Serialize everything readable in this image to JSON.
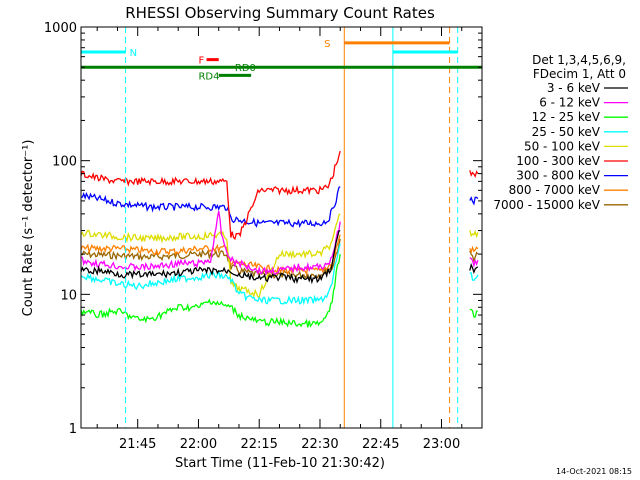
{
  "chart_data": {
    "type": "line",
    "title": "RHESSI Observing Summary Count Rates",
    "xlabel": "Start Time (11-Feb-10 21:30:42)",
    "ylabel": "Count Rate (s⁻¹ detector⁻¹)",
    "y_scale": "log",
    "ylim": [
      1,
      1000
    ],
    "xlim": [
      "21:31",
      "23:10"
    ],
    "y_ticks": [
      {
        "value": 1,
        "label": "1"
      },
      {
        "value": 10,
        "label": "10"
      },
      {
        "value": 100,
        "label": "100"
      },
      {
        "value": 1000,
        "label": "1000"
      }
    ],
    "x_ticks": [
      {
        "value": "21:45",
        "label": "21:45"
      },
      {
        "value": "22:00",
        "label": "22:00"
      },
      {
        "value": "22:15",
        "label": "22:15"
      },
      {
        "value": "22:30",
        "label": "22:30"
      },
      {
        "value": "22:45",
        "label": "22:45"
      },
      {
        "value": "23:00",
        "label": "23:00"
      }
    ],
    "legend_header": [
      "Det 1,3,4,5,6,9,",
      "FDecim 1, Att 0"
    ],
    "legend_position": "right",
    "series": [
      {
        "name": "3 - 6 keV",
        "color": "#000000",
        "segments": [
          {
            "x": [
              "21:31",
              "21:36",
              "21:42",
              "21:48",
              "21:55",
              "22:00",
              "22:05",
              "22:08",
              "22:10",
              "22:13",
              "22:15",
              "22:20",
              "22:25",
              "22:30",
              "22:33",
              "22:34",
              "22:35"
            ],
            "y": [
              15,
              15,
              14,
              14,
              14.5,
              15,
              15,
              15,
              14,
              13.5,
              13,
              13.5,
              13,
              13,
              16,
              25,
              30
            ]
          },
          {
            "x": [
              "23:07",
              "23:08",
              "23:09"
            ],
            "y": [
              16,
              15,
              16
            ]
          }
        ]
      },
      {
        "name": "6 - 12 keV",
        "color": "#ff00ff",
        "segments": [
          {
            "x": [
              "21:31",
              "21:35",
              "21:42",
              "21:48",
              "21:55",
              "22:00",
              "22:03",
              "22:04",
              "22:05",
              "22:06",
              "22:08",
              "22:10",
              "22:13",
              "22:15",
              "22:20",
              "22:25",
              "22:30",
              "22:33",
              "22:34",
              "22:35"
            ],
            "y": [
              18,
              17,
              16,
              16,
              17,
              17,
              18,
              28,
              40,
              25,
              18,
              17,
              16,
              15,
              15,
              16,
              16,
              18,
              26,
              35
            ]
          },
          {
            "x": [
              "23:07",
              "23:08",
              "23:09"
            ],
            "y": [
              18,
              17,
              18
            ]
          }
        ]
      },
      {
        "name": "12 - 25 keV",
        "color": "#00ff00",
        "segments": [
          {
            "x": [
              "21:31",
              "21:35",
              "21:40",
              "21:45",
              "21:48",
              "21:55",
              "22:00",
              "22:03",
              "22:05",
              "22:08",
              "22:10",
              "22:15",
              "22:20",
              "22:25",
              "22:30",
              "22:32",
              "22:33",
              "22:34",
              "22:35"
            ],
            "y": [
              7.5,
              7,
              7.5,
              6.5,
              6.5,
              8,
              8,
              9,
              8.5,
              8,
              7,
              6.2,
              6.2,
              6,
              6,
              7,
              9,
              14,
              20
            ]
          },
          {
            "x": [
              "23:07",
              "23:08",
              "23:09"
            ],
            "y": [
              7.5,
              7,
              7.5
            ]
          }
        ]
      },
      {
        "name": "25 - 50 keV",
        "color": "#00ffff",
        "segments": [
          {
            "x": [
              "21:31",
              "21:35",
              "21:40",
              "21:45",
              "21:48",
              "21:55",
              "22:00",
              "22:05",
              "22:08",
              "22:10",
              "22:15",
              "22:20",
              "22:25",
              "22:30",
              "22:32",
              "22:33",
              "22:34",
              "22:35"
            ],
            "y": [
              14,
              13,
              12,
              11.5,
              12,
              13,
              13.5,
              14,
              13,
              10,
              9,
              9,
              9,
              9,
              10,
              12,
              18,
              24
            ]
          },
          {
            "x": [
              "23:07",
              "23:08",
              "23:09"
            ],
            "y": [
              14,
              13,
              14
            ]
          }
        ]
      },
      {
        "name": "50 - 100 keV",
        "color": "#dddd00",
        "segments": [
          {
            "x": [
              "21:31",
              "21:40",
              "21:48",
              "21:55",
              "22:00",
              "22:05",
              "22:07",
              "22:08",
              "22:10",
              "22:15",
              "22:20",
              "22:25",
              "22:30",
              "22:33",
              "22:34",
              "22:35"
            ],
            "y": [
              29,
              27,
              26,
              27,
              27,
              28,
              27,
              12,
              11,
              10,
              20,
              20,
              20,
              24,
              32,
              40
            ]
          },
          {
            "x": [
              "23:07",
              "23:08",
              "23:09"
            ],
            "y": [
              29,
              28,
              29
            ]
          }
        ]
      },
      {
        "name": "100 - 300 keV",
        "color": "#ff0000",
        "segments": [
          {
            "x": [
              "21:31",
              "21:35",
              "21:40",
              "21:48",
              "21:55",
              "22:00",
              "22:05",
              "22:07",
              "22:08",
              "22:10",
              "22:15",
              "22:20",
              "22:25",
              "22:30",
              "22:32",
              "22:33",
              "22:34",
              "22:35"
            ],
            "y": [
              80,
              74,
              70,
              70,
              70,
              70,
              70,
              70,
              28,
              27,
              60,
              60,
              60,
              60,
              64,
              75,
              95,
              118
            ]
          },
          {
            "x": [
              "23:07",
              "23:08",
              "23:09"
            ],
            "y": [
              80,
              77,
              80
            ]
          }
        ]
      },
      {
        "name": "300 - 800 keV",
        "color": "#0000ff",
        "segments": [
          {
            "x": [
              "21:31",
              "21:35",
              "21:40",
              "21:48",
              "21:55",
              "22:00",
              "22:05",
              "22:07",
              "22:08",
              "22:10",
              "22:15",
              "22:20",
              "22:25",
              "22:30",
              "22:32",
              "22:33",
              "22:34",
              "22:35"
            ],
            "y": [
              55,
              52,
              48,
              45,
              45,
              45,
              45,
              45,
              37,
              36,
              34,
              34,
              34,
              34,
              36,
              42,
              52,
              64
            ]
          },
          {
            "x": [
              "23:07",
              "23:08",
              "23:09"
            ],
            "y": [
              52,
              50,
              52
            ]
          }
        ]
      },
      {
        "name": "800 - 7000 keV",
        "color": "#ff8000",
        "segments": [
          {
            "x": [
              "21:31",
              "21:40",
              "21:48",
              "21:55",
              "22:00",
              "22:05",
              "22:07",
              "22:08",
              "22:10",
              "22:15",
              "22:20",
              "22:25",
              "22:30",
              "22:33",
              "22:34",
              "22:35"
            ],
            "y": [
              22,
              22,
              21,
              21,
              22,
              22,
              22,
              17,
              17,
              16,
              15,
              15,
              15,
              17,
              22,
              28
            ]
          },
          {
            "x": [
              "23:07",
              "23:08",
              "23:09"
            ],
            "y": [
              22,
              21,
              22
            ]
          }
        ]
      },
      {
        "name": "7000 - 15000 keV",
        "color": "#996600",
        "segments": [
          {
            "x": [
              "21:31",
              "21:40",
              "21:48",
              "21:55",
              "22:00",
              "22:05",
              "22:07",
              "22:08",
              "22:10",
              "22:15",
              "22:20",
              "22:25",
              "22:30",
              "22:33",
              "22:34",
              "22:35"
            ],
            "y": [
              20,
              19.5,
              19,
              19.5,
              20,
              20,
              20,
              16,
              15,
              14,
              14,
              14,
              14,
              16,
              20,
              26
            ]
          },
          {
            "x": [
              "23:07",
              "23:08",
              "23:09"
            ],
            "y": [
              20,
              19,
              20
            ]
          }
        ]
      }
    ],
    "bars": [
      {
        "label": "N",
        "color": "#00ffff",
        "y": 650,
        "segments": [
          [
            "21:31",
            "21:42"
          ],
          [
            "22:48",
            "23:04"
          ]
        ],
        "label_at": "21:43"
      },
      {
        "label": "S",
        "color": "#ff8000",
        "y": 760,
        "segments": [
          [
            "22:36",
            "23:02"
          ]
        ],
        "label_at": "22:34"
      },
      {
        "label": "F",
        "color": "#ff0000",
        "y": 570,
        "segments": [
          [
            "22:02",
            "22:05"
          ]
        ],
        "label_at": "22:00"
      },
      {
        "label": "RD0",
        "color": "#008000",
        "y": 500,
        "segments": [
          [
            "21:31",
            "23:10"
          ]
        ],
        "label_at": "22:09"
      },
      {
        "label": "RD4",
        "color": "#008000",
        "y": 435,
        "segments": [
          [
            "22:05",
            "22:13"
          ]
        ],
        "label_at": "22:00"
      }
    ],
    "vlines": [
      {
        "x": "21:42",
        "color": "#00ffff",
        "style": "dashed"
      },
      {
        "x": "22:36",
        "color": "#ff8000",
        "style": "solid"
      },
      {
        "x": "22:48",
        "color": "#00ffff",
        "style": "solid"
      },
      {
        "x": "23:02",
        "color": "#ff8000",
        "style": "dashed"
      },
      {
        "x": "23:04",
        "color": "#00ffff",
        "style": "dashed"
      }
    ]
  },
  "footer": {
    "timestamp": "14-Oct-2021 08:15"
  }
}
